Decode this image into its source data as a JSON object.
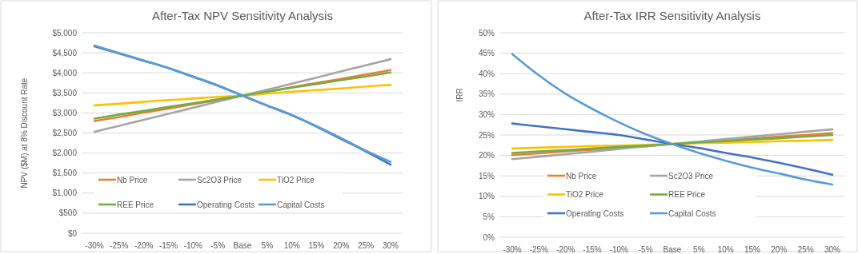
{
  "chart_data": [
    {
      "type": "line",
      "title": "After-Tax NPV Sensitivity Analysis",
      "ylabel": "NPV  ($M) at 8% Discount Rate",
      "categories": [
        "-30%",
        "-25%",
        "-20%",
        "-15%",
        "-10%",
        "-5%",
        "Base",
        "5%",
        "10%",
        "15%",
        "20%",
        "25%",
        "30%"
      ],
      "series": [
        {
          "name": "Nb Price",
          "color": "#ed7d31",
          "values": [
            2800,
            2900,
            3010,
            3110,
            3220,
            3320,
            3430,
            3530,
            3640,
            3750,
            3850,
            3960,
            4070
          ]
        },
        {
          "name": "Sc2O3 Price",
          "color": "#a5a5a5",
          "values": [
            2530,
            2680,
            2830,
            2980,
            3130,
            3280,
            3430,
            3580,
            3730,
            3880,
            4040,
            4190,
            4340
          ]
        },
        {
          "name": "TiO2 Price",
          "color": "#ffc000",
          "values": [
            3190,
            3230,
            3280,
            3320,
            3360,
            3400,
            3430,
            3480,
            3530,
            3570,
            3610,
            3660,
            3700
          ]
        },
        {
          "name": "REE Price",
          "color": "#70ad47",
          "values": [
            2860,
            2960,
            3050,
            3150,
            3240,
            3340,
            3430,
            3530,
            3630,
            3720,
            3820,
            3910,
            4010
          ]
        },
        {
          "name": "Operating Costs",
          "color": "#4472c4",
          "values": [
            4660,
            4480,
            4300,
            4120,
            3900,
            3680,
            3430,
            3180,
            2940,
            2660,
            2350,
            2040,
            1710
          ]
        },
        {
          "name": "Capital Costs",
          "color": "#5b9bd5",
          "values": [
            4680,
            4490,
            4310,
            4120,
            3910,
            3690,
            3430,
            3190,
            2950,
            2670,
            2370,
            2060,
            1780
          ]
        }
      ],
      "ylim": [
        0,
        5000
      ],
      "yticks": [
        {
          "value": 0,
          "label": "$0"
        },
        {
          "value": 500,
          "label": "$500"
        },
        {
          "value": 1000,
          "label": "$1,000"
        },
        {
          "value": 1500,
          "label": "$1,500"
        },
        {
          "value": 2000,
          "label": "$2,000"
        },
        {
          "value": 2500,
          "label": "$2,500"
        },
        {
          "value": 3000,
          "label": "$3,000"
        },
        {
          "value": 3500,
          "label": "$3,500"
        },
        {
          "value": 4000,
          "label": "$4,000"
        },
        {
          "value": 4500,
          "label": "$4,500"
        },
        {
          "value": 5000,
          "label": "$5,000"
        }
      ],
      "grid": "y",
      "legend": "bottom",
      "marker": "none"
    },
    {
      "type": "line",
      "title": "After-Tax IRR Sensitivity Analysis",
      "ylabel": "IRR",
      "categories": [
        "-30%",
        "-25%",
        "-20%",
        "-15%",
        "-10%",
        "-5%",
        "Base",
        "5%",
        "10%",
        "15%",
        "20%",
        "25%",
        "30%"
      ],
      "series": [
        {
          "name": "Nb Price",
          "color": "#ed7d31",
          "values": [
            20.1,
            20.5,
            21.0,
            21.4,
            21.9,
            22.3,
            22.8,
            23.2,
            23.7,
            24.1,
            24.6,
            25.0,
            25.5
          ]
        },
        {
          "name": "Sc2O3 Price",
          "color": "#a5a5a5",
          "values": [
            19.1,
            19.7,
            20.3,
            20.9,
            21.6,
            22.2,
            22.8,
            23.4,
            24.0,
            24.6,
            25.2,
            25.8,
            26.4
          ]
        },
        {
          "name": "TiO2 Price",
          "color": "#ffc000",
          "values": [
            21.7,
            21.9,
            22.1,
            22.3,
            22.4,
            22.6,
            22.8,
            23.0,
            23.1,
            23.3,
            23.5,
            23.6,
            23.8
          ]
        },
        {
          "name": "REE Price",
          "color": "#70ad47",
          "values": [
            20.6,
            21.0,
            21.3,
            21.7,
            22.1,
            22.4,
            22.8,
            23.2,
            23.5,
            23.9,
            24.2,
            24.6,
            25.0
          ]
        },
        {
          "name": "Operating Costs",
          "color": "#4472c4",
          "values": [
            27.8,
            27.1,
            26.4,
            25.7,
            25.0,
            23.9,
            22.8,
            21.8,
            20.6,
            19.5,
            18.2,
            16.8,
            15.3
          ]
        },
        {
          "name": "Capital Costs",
          "color": "#5b9bd5",
          "values": [
            44.8,
            39.6,
            35.1,
            31.4,
            28.1,
            25.2,
            22.8,
            20.6,
            18.7,
            17.0,
            15.6,
            14.1,
            12.9
          ]
        }
      ],
      "ylim": [
        0,
        50
      ],
      "yticks": [
        {
          "value": 0,
          "label": "0%"
        },
        {
          "value": 5,
          "label": "5%"
        },
        {
          "value": 10,
          "label": "10%"
        },
        {
          "value": 15,
          "label": "15%"
        },
        {
          "value": 20,
          "label": "20%"
        },
        {
          "value": 25,
          "label": "25%"
        },
        {
          "value": 30,
          "label": "30%"
        },
        {
          "value": 35,
          "label": "35%"
        },
        {
          "value": 40,
          "label": "40%"
        },
        {
          "value": 45,
          "label": "45%"
        },
        {
          "value": 50,
          "label": "50%"
        }
      ],
      "grid": "y",
      "legend": "bottom",
      "marker": "none"
    }
  ]
}
